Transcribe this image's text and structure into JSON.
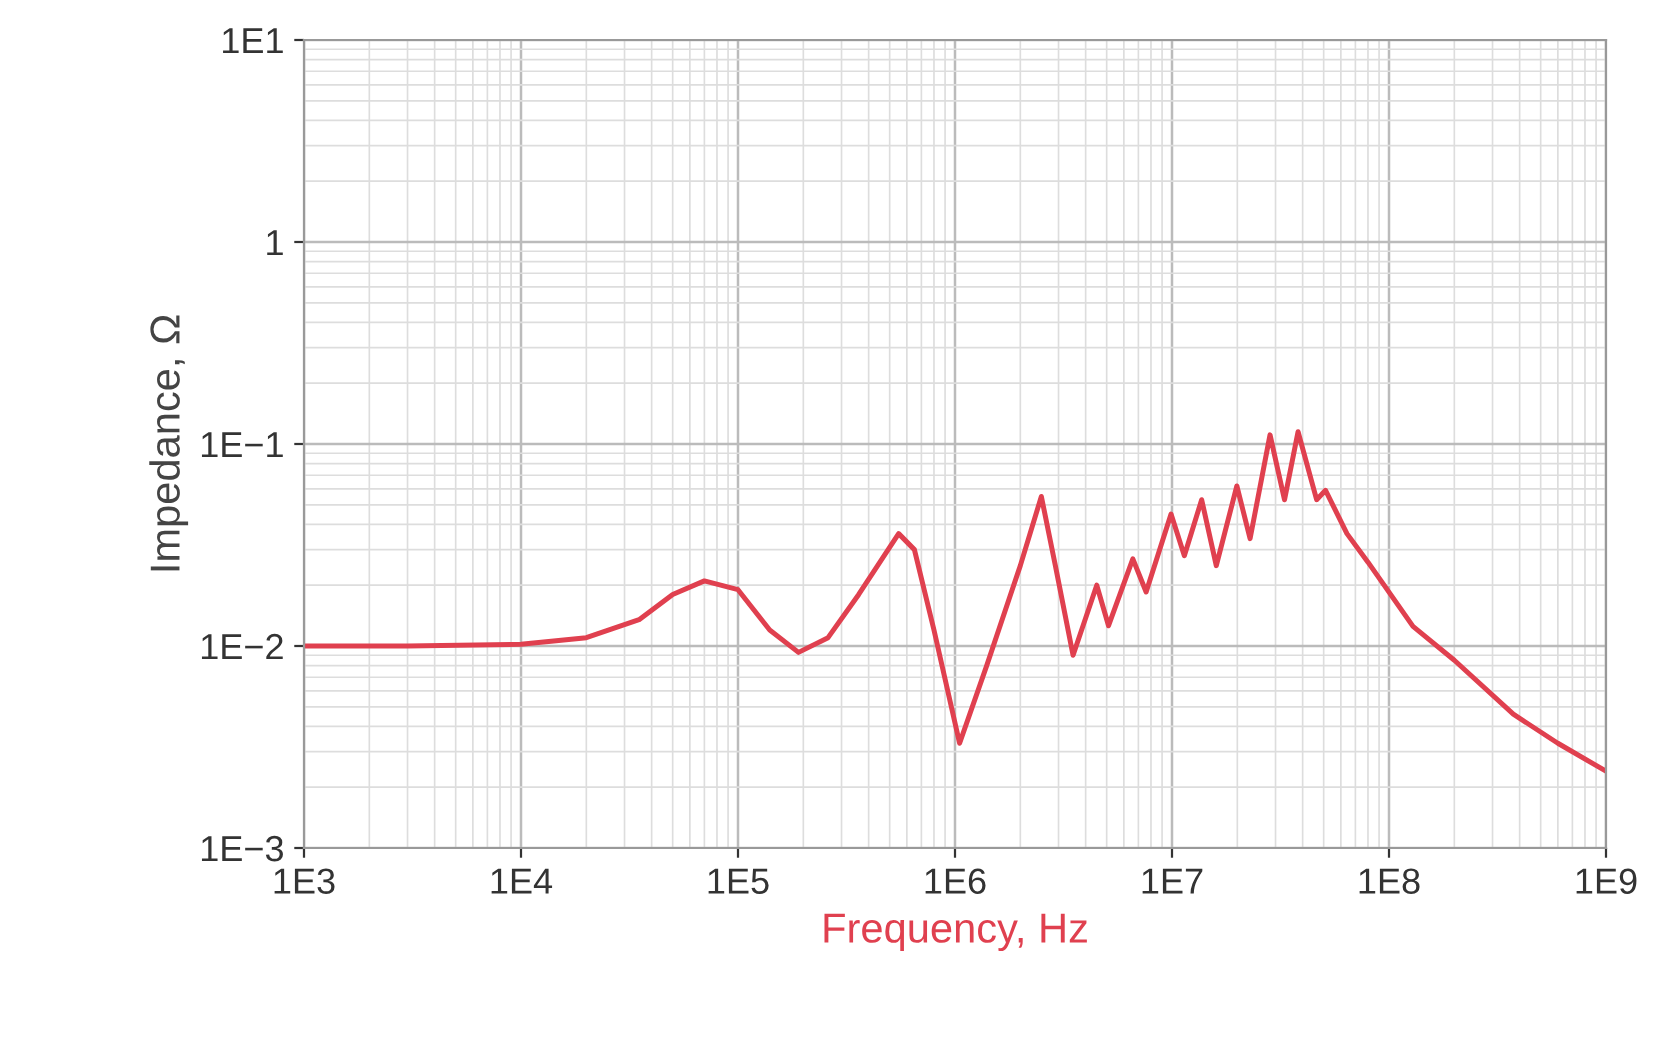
{
  "chart_data": {
    "type": "line",
    "xlabel": "Frequency, Hz",
    "ylabel": "Impedance, Ω",
    "log": "xy",
    "grid": true,
    "legend": false,
    "marker": "none",
    "line_style": "solid",
    "xlim": [
      1000,
      1000000000
    ],
    "ylim": [
      0.001,
      10
    ],
    "xticks": [
      {
        "value": 1000,
        "label": "1E3"
      },
      {
        "value": 10000,
        "label": "1E4"
      },
      {
        "value": 100000,
        "label": "1E5"
      },
      {
        "value": 1000000,
        "label": "1E6"
      },
      {
        "value": 10000000,
        "label": "1E7"
      },
      {
        "value": 100000000,
        "label": "1E8"
      },
      {
        "value": 1000000000,
        "label": "1E9"
      }
    ],
    "yticks": [
      {
        "value": 0.001,
        "label": "1E−3"
      },
      {
        "value": 0.01,
        "label": "1E−2"
      },
      {
        "value": 0.1,
        "label": "1E−1"
      },
      1,
      {
        "value": 10,
        "label": "1E1"
      }
    ],
    "series": [
      {
        "color": "#e0404f",
        "x": [
          1000,
          3000,
          10000,
          20000,
          35000,
          50000,
          70000,
          100000,
          140000,
          190000,
          260000,
          360000,
          550000,
          650000,
          800000,
          1050000,
          1400000,
          2000000,
          2500000,
          2900000,
          3500000,
          4500000,
          5100000,
          6600000,
          7600000,
          9900000,
          11400000,
          13700000,
          16000000,
          19900000,
          22900000,
          28300000,
          33000000,
          38100000,
          46400000,
          51000000,
          64000000,
          80000000,
          129000000,
          200000000,
          374000000,
          600000000,
          1000000000
        ],
        "values": [
          0.01,
          0.01,
          0.0102,
          0.011,
          0.0135,
          0.018,
          0.021,
          0.019,
          0.012,
          0.0093,
          0.011,
          0.018,
          0.036,
          0.03,
          0.012,
          0.0033,
          0.008,
          0.025,
          0.055,
          0.025,
          0.009,
          0.02,
          0.0126,
          0.027,
          0.0185,
          0.045,
          0.028,
          0.053,
          0.025,
          0.062,
          0.034,
          0.111,
          0.053,
          0.115,
          0.053,
          0.059,
          0.036,
          0.026,
          0.0125,
          0.0085,
          0.0046,
          0.0033,
          0.0024
        ]
      }
    ]
  }
}
